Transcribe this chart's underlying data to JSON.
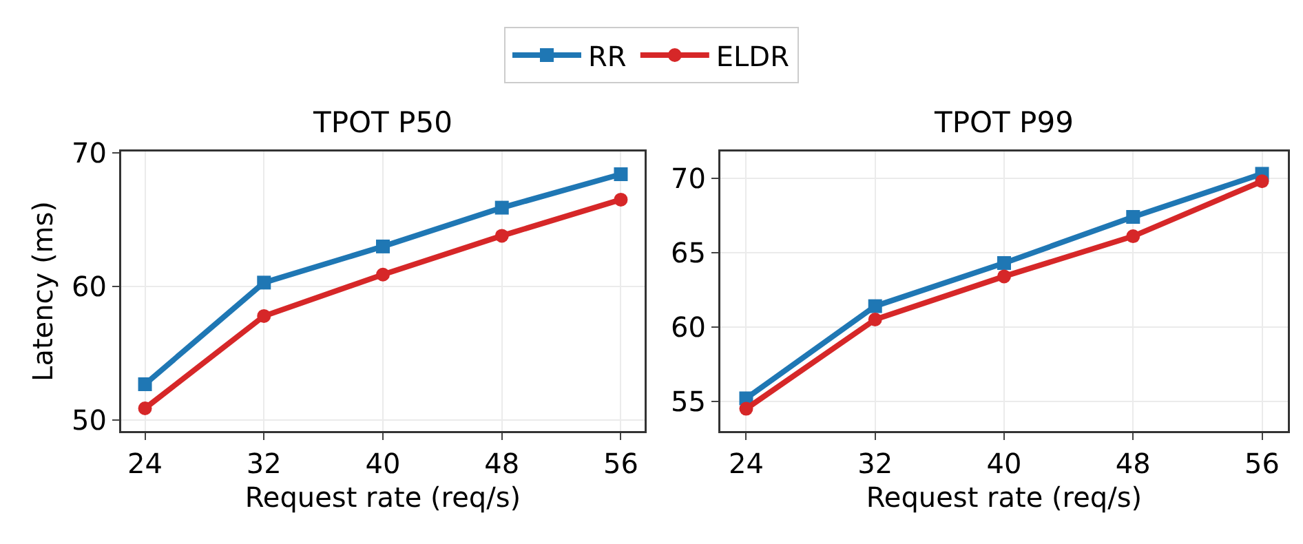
{
  "chart_data": [
    {
      "type": "line",
      "title": "TPOT P50",
      "xlabel": "Request rate (req/s)",
      "ylabel": "Latency (ms)",
      "x": [
        24,
        32,
        40,
        48,
        56
      ],
      "series": [
        {
          "name": "RR",
          "color": "#1f77b4",
          "marker": "square",
          "values": [
            52.7,
            60.3,
            63.0,
            65.9,
            68.4
          ]
        },
        {
          "name": "ELDR",
          "color": "#d62728",
          "marker": "circle",
          "values": [
            50.9,
            57.8,
            60.9,
            63.8,
            66.5
          ]
        }
      ],
      "xlim": [
        22.4,
        57.6
      ],
      "xticks": [
        24,
        32,
        40,
        48,
        56
      ],
      "ylim": [
        49.2,
        70.1
      ],
      "yticks": [
        50,
        60,
        70
      ],
      "grid": true,
      "legend": "top",
      "line_style": "solid"
    },
    {
      "type": "line",
      "title": "TPOT P99",
      "xlabel": "Request rate (req/s)",
      "x": [
        24,
        32,
        40,
        48,
        56
      ],
      "series": [
        {
          "color": "#1f77b4",
          "marker": "square",
          "values": [
            55.2,
            61.4,
            64.3,
            67.4,
            70.3
          ]
        },
        {
          "color": "#d62728",
          "marker": "circle",
          "values": [
            54.5,
            60.5,
            63.4,
            66.1,
            69.8
          ]
        }
      ],
      "xlim": [
        22.4,
        57.6
      ],
      "xticks": [
        24,
        32,
        40,
        48,
        56
      ],
      "ylim": [
        53.0,
        71.8
      ],
      "yticks": [
        55,
        60,
        65,
        70
      ],
      "grid": true,
      "line_style": "solid"
    }
  ]
}
